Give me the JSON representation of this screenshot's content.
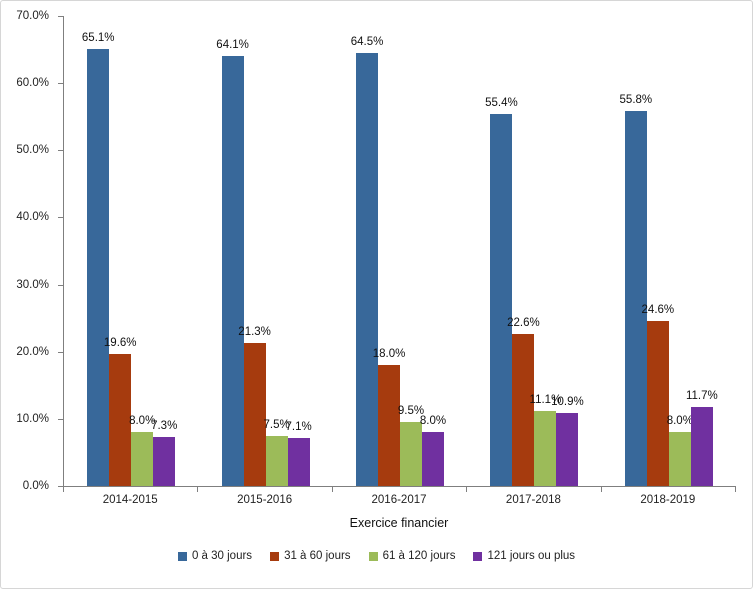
{
  "chart_data": {
    "type": "bar",
    "title": "",
    "categories": [
      "2014-2015",
      "2015-2016",
      "2016-2017",
      "2017-2018",
      "2018-2019"
    ],
    "series": [
      {
        "name": "0 à 30 jours",
        "color": "#38689A",
        "values": [
          65.1,
          64.1,
          64.5,
          55.4,
          55.8
        ]
      },
      {
        "name": "31 à 60 jours",
        "color": "#A63B0E",
        "values": [
          19.6,
          21.3,
          18.0,
          22.6,
          24.6
        ]
      },
      {
        "name": "61 à 120 jours",
        "color": "#9CBB59",
        "values": [
          8.0,
          7.5,
          9.5,
          11.1,
          8.0
        ]
      },
      {
        "name": "121 jours ou plus",
        "color": "#7030A0",
        "values": [
          7.3,
          7.1,
          8.0,
          10.9,
          11.7
        ]
      }
    ],
    "xlabel": "Exercice financier",
    "ylabel": "",
    "ylim": [
      0,
      70
    ],
    "ytick_step": 10,
    "ytick_labels": [
      "0.0%",
      "10.0%",
      "20.0%",
      "30.0%",
      "40.0%",
      "50.0%",
      "60.0%",
      "70.0%"
    ],
    "grid": false,
    "legend_position": "bottom",
    "value_suffix": "%",
    "data_labels": true
  }
}
